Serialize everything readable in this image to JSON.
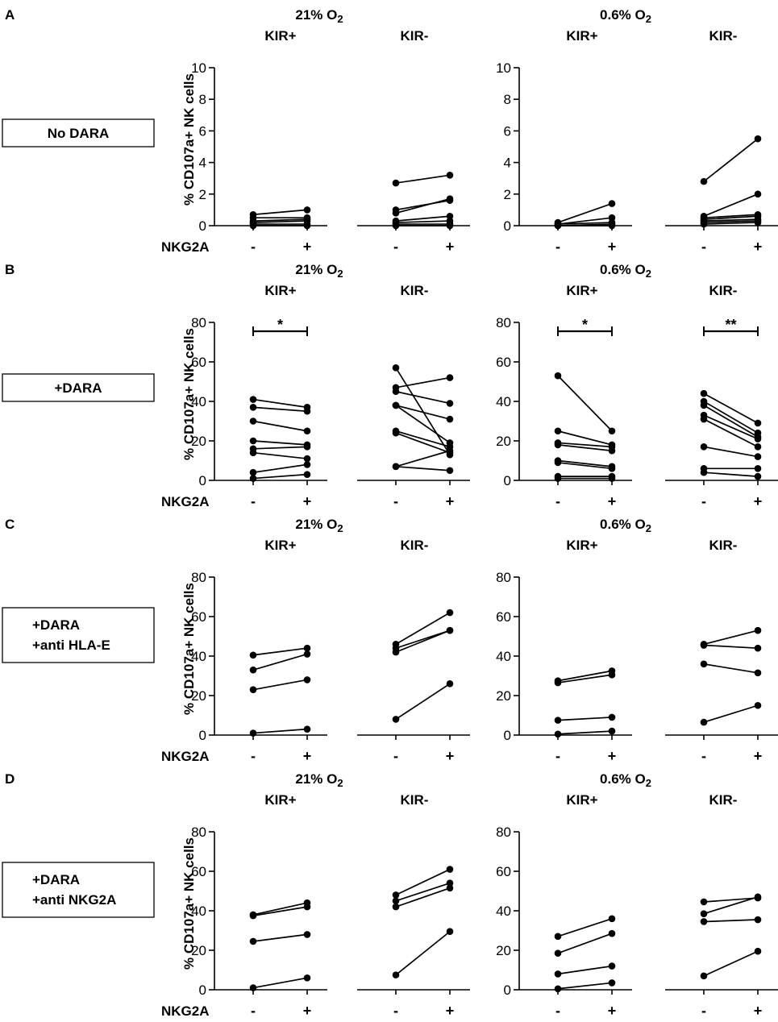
{
  "figure": {
    "ylabel": "% CD107a+ NK cells",
    "xlabel": "NKG2A",
    "x_categories": [
      "-",
      "+"
    ],
    "groups": [
      "KIR+",
      "KIR-"
    ],
    "conditions": [
      {
        "label": "21% O",
        "sub": "2"
      },
      {
        "label": "0.6% O",
        "sub": "2"
      }
    ]
  },
  "chart_data": [
    {
      "panel_letter": "A",
      "treatment": [
        "No DARA"
      ],
      "type": "line",
      "ylim": [
        0,
        10
      ],
      "yticks": [
        0,
        2,
        4,
        6,
        8,
        10
      ],
      "subplots": [
        {
          "condition": 0,
          "group": 0,
          "pairs": [
            [
              0.7,
              1.0
            ],
            [
              0.5,
              0.5
            ],
            [
              0.3,
              0.4
            ],
            [
              0.2,
              0.3
            ],
            [
              0.1,
              0.1
            ],
            [
              0.0,
              0.0
            ]
          ],
          "sig": null
        },
        {
          "condition": 0,
          "group": 1,
          "pairs": [
            [
              2.7,
              3.2
            ],
            [
              1.0,
              1.6
            ],
            [
              0.8,
              1.7
            ],
            [
              0.3,
              0.6
            ],
            [
              0.2,
              0.3
            ],
            [
              0.1,
              0.1
            ],
            [
              0.0,
              0.0
            ]
          ],
          "sig": null
        },
        {
          "condition": 1,
          "group": 0,
          "pairs": [
            [
              0.2,
              1.4
            ],
            [
              0.1,
              0.5
            ],
            [
              0.1,
              0.2
            ],
            [
              0.0,
              0.1
            ],
            [
              0.0,
              0.0
            ]
          ],
          "sig": null
        },
        {
          "condition": 1,
          "group": 1,
          "pairs": [
            [
              2.8,
              5.5
            ],
            [
              0.6,
              2.0
            ],
            [
              0.5,
              0.7
            ],
            [
              0.4,
              0.6
            ],
            [
              0.3,
              0.4
            ],
            [
              0.2,
              0.3
            ],
            [
              0.1,
              0.2
            ]
          ],
          "sig": null
        }
      ]
    },
    {
      "panel_letter": "B",
      "treatment": [
        "+DARA"
      ],
      "type": "line",
      "ylim": [
        0,
        80
      ],
      "yticks": [
        0,
        20,
        40,
        60,
        80
      ],
      "subplots": [
        {
          "condition": 0,
          "group": 0,
          "pairs": [
            [
              41,
              37
            ],
            [
              37,
              35
            ],
            [
              30,
              25
            ],
            [
              20,
              18
            ],
            [
              16,
              17
            ],
            [
              14,
              11
            ],
            [
              4,
              8
            ],
            [
              1,
              3
            ]
          ],
          "sig": "*"
        },
        {
          "condition": 0,
          "group": 1,
          "pairs": [
            [
              57,
              13
            ],
            [
              47,
              52
            ],
            [
              45,
              39
            ],
            [
              38,
              31
            ],
            [
              38,
              19
            ],
            [
              25,
              17
            ],
            [
              24,
              14
            ],
            [
              7,
              15
            ],
            [
              7,
              5
            ]
          ],
          "sig": null
        },
        {
          "condition": 1,
          "group": 0,
          "pairs": [
            [
              53,
              25
            ],
            [
              25,
              18
            ],
            [
              19,
              17
            ],
            [
              18,
              15
            ],
            [
              10,
              7
            ],
            [
              9,
              6
            ],
            [
              2,
              2
            ],
            [
              1,
              1
            ]
          ],
          "sig": "*"
        },
        {
          "condition": 1,
          "group": 1,
          "pairs": [
            [
              44,
              29
            ],
            [
              40,
              24
            ],
            [
              38,
              22
            ],
            [
              33,
              21
            ],
            [
              31,
              17
            ],
            [
              17,
              12
            ],
            [
              6,
              6
            ],
            [
              4,
              2
            ]
          ],
          "sig": "**"
        }
      ]
    },
    {
      "panel_letter": "C",
      "treatment": [
        "+DARA",
        "+anti HLA-E"
      ],
      "type": "line",
      "ylim": [
        0,
        80
      ],
      "yticks": [
        0,
        20,
        40,
        60,
        80
      ],
      "subplots": [
        {
          "condition": 0,
          "group": 0,
          "pairs": [
            [
              40.5,
              44
            ],
            [
              33,
              41
            ],
            [
              23,
              28
            ],
            [
              1,
              3
            ]
          ],
          "sig": null
        },
        {
          "condition": 0,
          "group": 1,
          "pairs": [
            [
              46,
              62
            ],
            [
              44,
              53
            ],
            [
              42,
              53
            ],
            [
              8,
              26
            ]
          ],
          "sig": null
        },
        {
          "condition": 1,
          "group": 0,
          "pairs": [
            [
              27.5,
              32.5
            ],
            [
              26.5,
              30.5
            ],
            [
              7.5,
              9
            ],
            [
              0.5,
              2
            ]
          ],
          "sig": null
        },
        {
          "condition": 1,
          "group": 1,
          "pairs": [
            [
              46,
              53
            ],
            [
              45.5,
              44
            ],
            [
              36,
              31.5
            ],
            [
              6.5,
              15
            ]
          ],
          "sig": null
        }
      ]
    },
    {
      "panel_letter": "D",
      "treatment": [
        "+DARA",
        "+anti NKG2A"
      ],
      "type": "line",
      "ylim": [
        0,
        80
      ],
      "yticks": [
        0,
        20,
        40,
        60,
        80
      ],
      "subplots": [
        {
          "condition": 0,
          "group": 0,
          "pairs": [
            [
              38,
              44
            ],
            [
              37.5,
              42
            ],
            [
              24.5,
              28
            ],
            [
              1,
              6
            ]
          ],
          "sig": null
        },
        {
          "condition": 0,
          "group": 1,
          "pairs": [
            [
              48,
              61
            ],
            [
              45,
              54
            ],
            [
              42,
              51.5
            ],
            [
              7.5,
              29.5
            ]
          ],
          "sig": null
        },
        {
          "condition": 1,
          "group": 0,
          "pairs": [
            [
              27,
              36
            ],
            [
              18.5,
              28.5
            ],
            [
              8,
              12
            ],
            [
              0.5,
              3.5
            ]
          ],
          "sig": null
        },
        {
          "condition": 1,
          "group": 1,
          "pairs": [
            [
              44.5,
              46.5
            ],
            [
              38.5,
              47
            ],
            [
              34.5,
              35.5
            ],
            [
              7,
              19.5
            ]
          ],
          "sig": null
        }
      ]
    }
  ]
}
